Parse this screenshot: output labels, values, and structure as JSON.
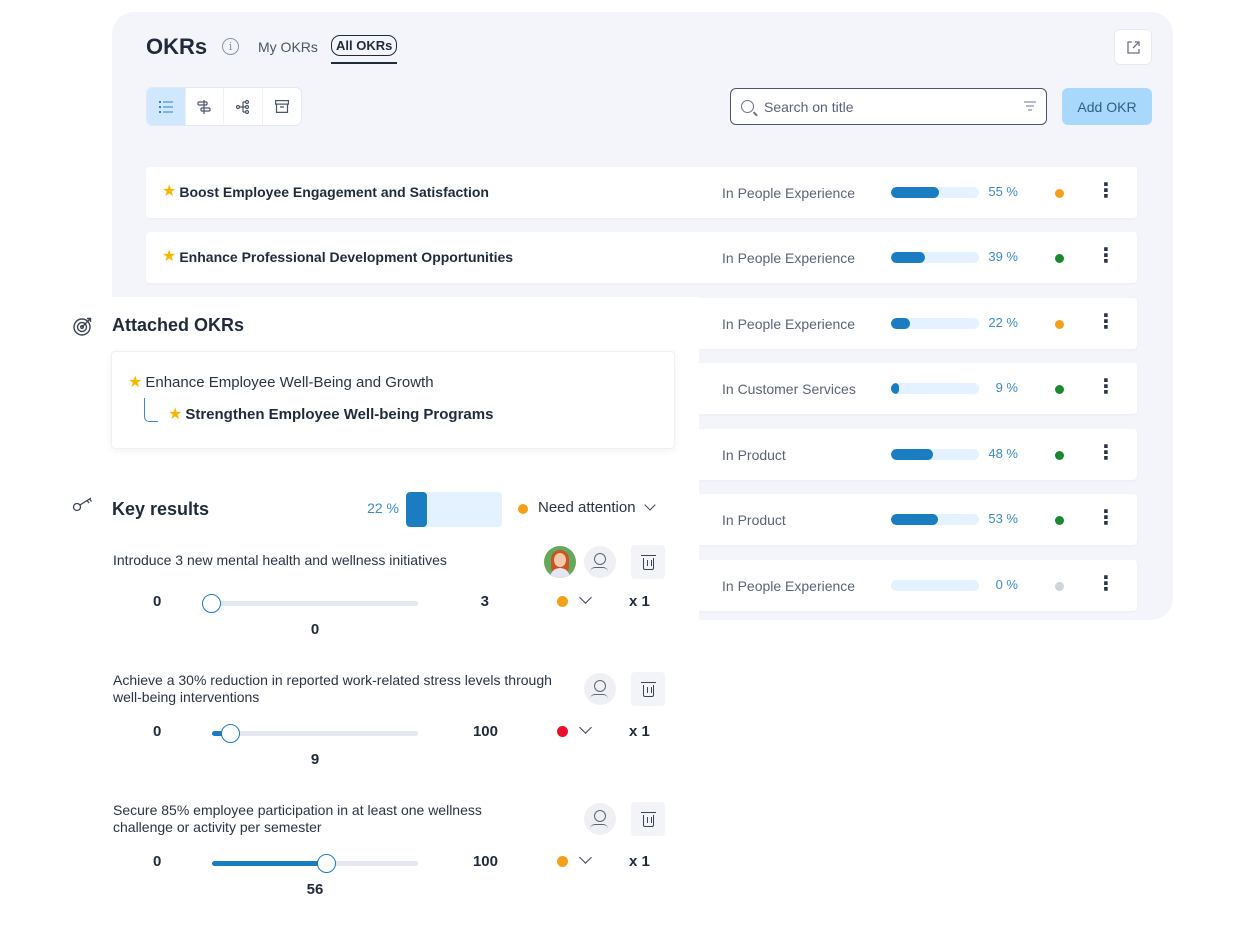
{
  "header": {
    "title": "OKRs",
    "tabs": [
      {
        "label": "My OKRs"
      },
      {
        "label": "All OKRs",
        "active": true
      }
    ],
    "search_placeholder": "Search on title",
    "add_button": "Add OKR"
  },
  "view_modes": [
    "list-icon",
    "roadmap-icon",
    "tree-icon",
    "archive-icon"
  ],
  "okrs": [
    {
      "title": "Boost Employee Engagement and Satisfaction",
      "team": "In People Experience",
      "progress": 55,
      "progress_label": "55 %",
      "status_color": "#f5a01a"
    },
    {
      "title": "Enhance Professional Development Opportunities",
      "team": "In People Experience",
      "progress": 39,
      "progress_label": "39 %",
      "status_color": "#1a8a2e"
    },
    {
      "title": "",
      "team": "In People Experience",
      "progress": 22,
      "progress_label": "22 %",
      "status_color": "#f5a01a"
    },
    {
      "title": "",
      "team": "In Customer Services",
      "progress": 9,
      "progress_label": "9 %",
      "status_color": "#1a8a2e"
    },
    {
      "title": "",
      "team": "In Product",
      "progress": 48,
      "progress_label": "48 %",
      "status_color": "#1a8a2e"
    },
    {
      "title": "",
      "team": "In Product",
      "progress": 53,
      "progress_label": "53 %",
      "status_color": "#1a8a2e"
    },
    {
      "title": "",
      "team": "In People Experience",
      "progress": 0,
      "progress_label": "0 %",
      "status_color": "#cfd3da"
    }
  ],
  "attached": {
    "title": "Attached OKRs",
    "parent": "Enhance Employee Well-Being and Growth",
    "child": "Strengthen Employee Well-being Programs"
  },
  "key_results": {
    "title": "Key results",
    "progress": 22,
    "progress_label": "22 %",
    "status_label": "Need attention",
    "status_color": "#f5a01a",
    "items": [
      {
        "name": "Introduce 3 new mental health and wellness initiatives",
        "min": "0",
        "max": "3",
        "current": "0",
        "fraction": 0,
        "dot_color": "#f5a01a",
        "weight": "x 1",
        "has_avatar": true
      },
      {
        "name": "Achieve a 30% reduction in reported work-related stress levels through well-being interventions",
        "min": "0",
        "max": "100",
        "current": "9",
        "fraction": 0.09,
        "dot_color": "#e8102a",
        "weight": "x 1",
        "has_avatar": false
      },
      {
        "name": "Secure 85% employee participation in at least one wellness challenge or activity per semester",
        "min": "0",
        "max": "100",
        "current": "56",
        "fraction": 0.56,
        "dot_color": "#f5a01a",
        "weight": "x 1",
        "has_avatar": false
      }
    ]
  }
}
